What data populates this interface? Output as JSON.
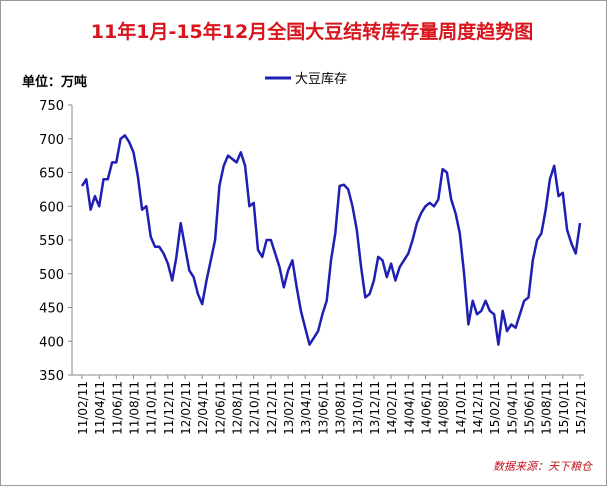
{
  "chart_data": {
    "type": "line",
    "title": "11年1月-15年12月全国大豆结转库存量周度趋势图",
    "y_label": "单位：万吨",
    "source": "数据来源：天下粮仓",
    "categories": [
      "11/02/11",
      null,
      null,
      null,
      "11/04/11",
      null,
      null,
      null,
      "11/06/11",
      null,
      null,
      null,
      "11/08/11",
      null,
      null,
      null,
      "11/10/11",
      null,
      null,
      null,
      "11/12/11",
      null,
      null,
      null,
      "12/02/11",
      null,
      null,
      null,
      "12/04/11",
      null,
      null,
      null,
      "12/06/11",
      null,
      null,
      null,
      "12/08/11",
      null,
      null,
      null,
      "12/10/11",
      null,
      null,
      null,
      "12/12/11",
      null,
      null,
      null,
      "13/02/11",
      null,
      null,
      null,
      "13/04/11",
      null,
      null,
      null,
      "13/06/11",
      null,
      null,
      null,
      "13/08/11",
      null,
      null,
      null,
      "13/10/11",
      null,
      null,
      null,
      "13/12/11",
      null,
      null,
      null,
      "14/02/11",
      null,
      null,
      null,
      "14/04/11",
      null,
      null,
      null,
      "14/06/11",
      null,
      null,
      null,
      "14/08/11",
      null,
      null,
      null,
      "14/10/11",
      null,
      null,
      null,
      "14/12/11",
      null,
      null,
      null,
      "15/02/11",
      null,
      null,
      null,
      "15/04/11",
      null,
      null,
      null,
      "15/06/11",
      null,
      null,
      null,
      "15/08/11",
      null,
      null,
      null,
      "15/10/11",
      null,
      null,
      null,
      "15/12/11"
    ],
    "series": [
      {
        "name": "大豆库存",
        "color": "#1f1fb4",
        "values": [
          630,
          640,
          595,
          615,
          600,
          640,
          640,
          665,
          665,
          700,
          705,
          695,
          680,
          645,
          595,
          600,
          555,
          540,
          540,
          530,
          515,
          490,
          525,
          575,
          540,
          505,
          495,
          470,
          455,
          490,
          520,
          550,
          630,
          660,
          675,
          670,
          665,
          680,
          660,
          600,
          605,
          535,
          525,
          550,
          550,
          530,
          510,
          480,
          505,
          520,
          480,
          445,
          420,
          395,
          405,
          415,
          440,
          460,
          520,
          560,
          630,
          632,
          625,
          600,
          565,
          510,
          465,
          470,
          490,
          525,
          520,
          495,
          515,
          490,
          510,
          520,
          530,
          550,
          575,
          590,
          600,
          605,
          600,
          610,
          655,
          650,
          610,
          590,
          560,
          500,
          425,
          460,
          440,
          445,
          460,
          445,
          440,
          395,
          445,
          415,
          425,
          420,
          440,
          460,
          465,
          520,
          550,
          560,
          595,
          640,
          660,
          615,
          620,
          565,
          545,
          530,
          575
        ]
      }
    ],
    "ylim": [
      350,
      750
    ],
    "yticks": [
      350,
      400,
      450,
      500,
      550,
      600,
      650,
      700,
      750
    ],
    "legend": "top",
    "grid": false
  }
}
